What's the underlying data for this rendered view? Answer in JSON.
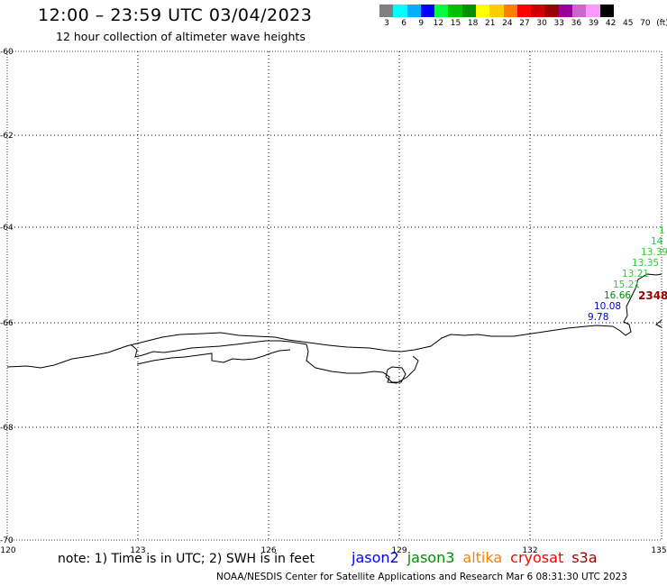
{
  "header": {
    "title": "12:00 – 23:59 UTC 03/04/2023",
    "subtitle": "12 hour collection of altimeter wave heights"
  },
  "legend": {
    "colors": [
      "#808080",
      "#00ffff",
      "#00b0ff",
      "#0000ff",
      "#00ff40",
      "#00c000",
      "#009000",
      "#ffff00",
      "#ffcc00",
      "#ff8000",
      "#ff0000",
      "#cc0000",
      "#990000",
      "#990099",
      "#cc66cc",
      "#ff99ff",
      "#000000"
    ],
    "labels": [
      "3",
      "6",
      "9",
      "12",
      "15",
      "18",
      "21",
      "24",
      "27",
      "30",
      "33",
      "36",
      "39",
      "42",
      "45",
      "70",
      "(ft)"
    ]
  },
  "axes": {
    "lat_labels": [
      "-60",
      "-62",
      "-64",
      "-66",
      "-68",
      "-70"
    ],
    "lon_labels": [
      "120",
      "123",
      "126",
      "129",
      "132",
      "135"
    ]
  },
  "points": {
    "green": [
      "1",
      "14",
      "13.39",
      "13.35",
      "13.21",
      "15.21",
      "16.66"
    ],
    "blue": [
      "10.08",
      "9.78"
    ],
    "red": "2348"
  },
  "footer": {
    "note": "note: 1) Time is in UTC; 2) SWH is in feet",
    "satellites": [
      {
        "name": "jason2",
        "color": "#0000ff"
      },
      {
        "name": "jason3",
        "color": "#009000"
      },
      {
        "name": "altika",
        "color": "#ff8000"
      },
      {
        "name": "cryosat",
        "color": "#ff0000"
      },
      {
        "name": "s3a",
        "color": "#990000"
      }
    ],
    "credit": "NOAA/NESDIS Center for Satellite Applications and Research   Mar  6 08:31:30 UTC 2023"
  }
}
